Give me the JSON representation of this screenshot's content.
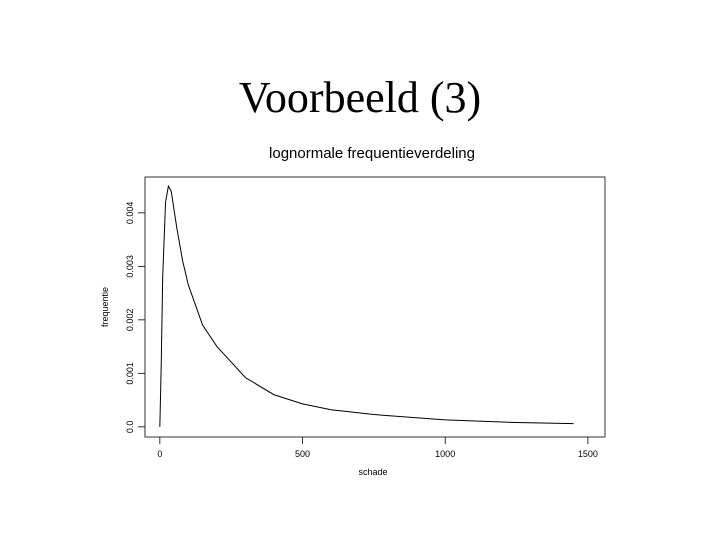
{
  "slide_title": "Voorbeeld (3)",
  "chart_data": {
    "type": "line",
    "title": "lognormale frequentieverdeling",
    "x_label": "schade",
    "y_label": "frequentie",
    "x": [
      0,
      5,
      10,
      20,
      30,
      40,
      60,
      80,
      100,
      150,
      200,
      300,
      400,
      500,
      600,
      750,
      1000,
      1250,
      1450
    ],
    "series": [
      {
        "color": "#000000",
        "values": [
          0,
          0.0012,
          0.0028,
          0.0042,
          0.0045,
          0.0044,
          0.0037,
          0.0031,
          0.00265,
          0.0019,
          0.0015,
          0.00092,
          0.0006,
          0.00043,
          0.00032,
          0.00023,
          0.00013,
          8e-05,
          6e-05
        ]
      }
    ],
    "xlim": [
      -52,
      1560
    ],
    "xticks": [
      0,
      500,
      1000,
      1500
    ],
    "ylim": [
      -0.00019,
      0.00467
    ],
    "yticks": [
      {
        "value": 0,
        "label": "0.0"
      },
      0.001,
      0.002,
      0.003,
      0.004
    ],
    "grid": false
  }
}
